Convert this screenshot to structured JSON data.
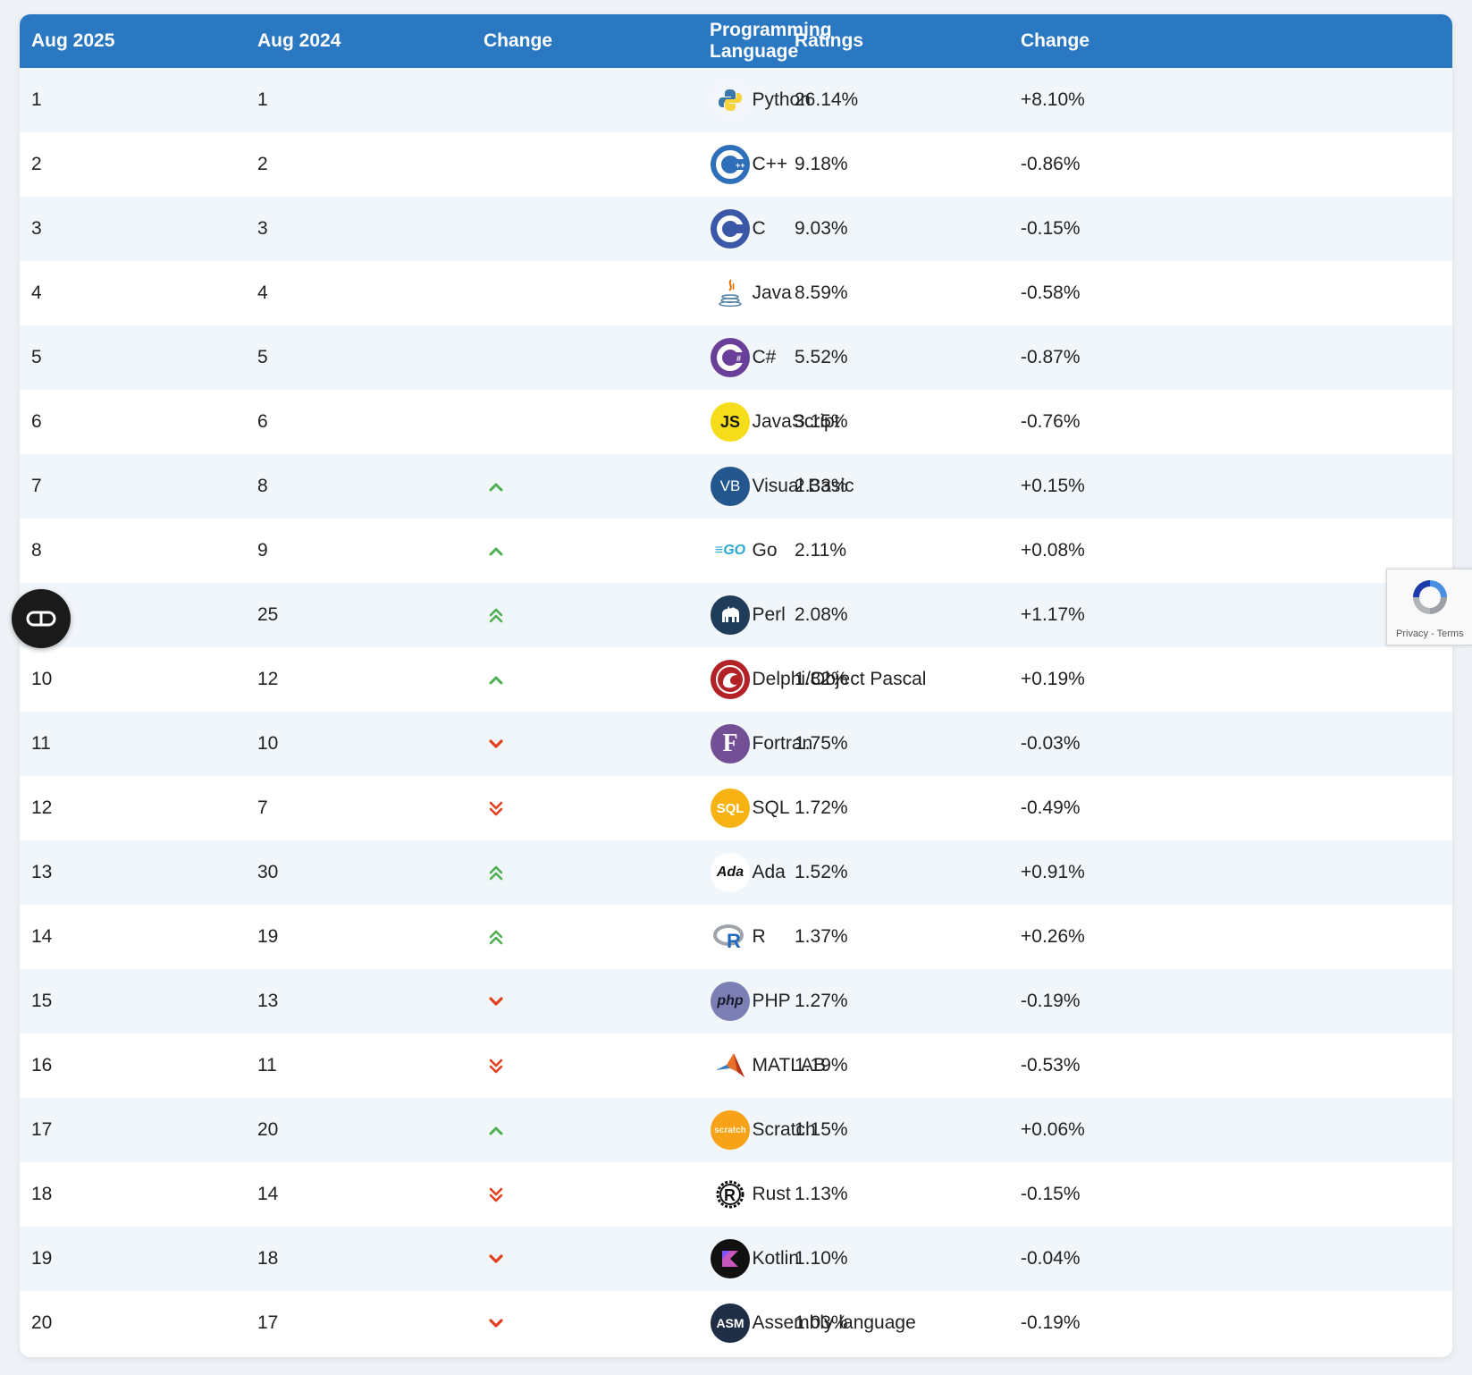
{
  "header": {
    "col1": "Aug 2025",
    "col2": "Aug 2024",
    "col3": "Change",
    "col4": "Programming Language",
    "col5": "Ratings",
    "col6": "Change"
  },
  "colors": {
    "header_bg": "#2a77c2",
    "up": "#4caf50",
    "down": "#e0401f"
  },
  "rows": [
    {
      "rank_2025": "1",
      "rank_2024": "1",
      "trend": "none",
      "icon": "python-logo-icon",
      "language": "Python",
      "rating": "26.14%",
      "change": "+8.10%"
    },
    {
      "rank_2025": "2",
      "rank_2024": "2",
      "trend": "none",
      "icon": "cplusplus-logo-icon",
      "language": "C++",
      "rating": "9.18%",
      "change": "-0.86%"
    },
    {
      "rank_2025": "3",
      "rank_2024": "3",
      "trend": "none",
      "icon": "c-logo-icon",
      "language": "C",
      "rating": "9.03%",
      "change": "-0.15%"
    },
    {
      "rank_2025": "4",
      "rank_2024": "4",
      "trend": "none",
      "icon": "java-logo-icon",
      "language": "Java",
      "rating": "8.59%",
      "change": "-0.58%"
    },
    {
      "rank_2025": "5",
      "rank_2024": "5",
      "trend": "none",
      "icon": "csharp-logo-icon",
      "language": "C#",
      "rating": "5.52%",
      "change": "-0.87%"
    },
    {
      "rank_2025": "6",
      "rank_2024": "6",
      "trend": "none",
      "icon": "javascript-logo-icon",
      "language": "JavaScript",
      "rating": "3.15%",
      "change": "-0.76%"
    },
    {
      "rank_2025": "7",
      "rank_2024": "8",
      "trend": "up",
      "icon": "visualbasic-logo-icon",
      "language": "Visual Basic",
      "rating": "2.33%",
      "change": "+0.15%"
    },
    {
      "rank_2025": "8",
      "rank_2024": "9",
      "trend": "up",
      "icon": "go-logo-icon",
      "language": "Go",
      "rating": "2.11%",
      "change": "+0.08%"
    },
    {
      "rank_2025": "",
      "rank_2024": "25",
      "trend": "double-up",
      "icon": "perl-logo-icon",
      "language": "Perl",
      "rating": "2.08%",
      "change": "+1.17%"
    },
    {
      "rank_2025": "10",
      "rank_2024": "12",
      "trend": "up",
      "icon": "delphi-logo-icon",
      "language": "Delphi/Object Pascal",
      "rating": "1.82%",
      "change": "+0.19%"
    },
    {
      "rank_2025": "11",
      "rank_2024": "10",
      "trend": "down",
      "icon": "fortran-logo-icon",
      "language": "Fortran",
      "rating": "1.75%",
      "change": "-0.03%"
    },
    {
      "rank_2025": "12",
      "rank_2024": "7",
      "trend": "double-down",
      "icon": "sql-logo-icon",
      "language": "SQL",
      "rating": "1.72%",
      "change": "-0.49%"
    },
    {
      "rank_2025": "13",
      "rank_2024": "30",
      "trend": "double-up",
      "icon": "ada-logo-icon",
      "language": "Ada",
      "rating": "1.52%",
      "change": "+0.91%"
    },
    {
      "rank_2025": "14",
      "rank_2024": "19",
      "trend": "double-up",
      "icon": "r-logo-icon",
      "language": "R",
      "rating": "1.37%",
      "change": "+0.26%"
    },
    {
      "rank_2025": "15",
      "rank_2024": "13",
      "trend": "down",
      "icon": "php-logo-icon",
      "language": "PHP",
      "rating": "1.27%",
      "change": "-0.19%"
    },
    {
      "rank_2025": "16",
      "rank_2024": "11",
      "trend": "double-down",
      "icon": "matlab-logo-icon",
      "language": "MATLAB",
      "rating": "1.19%",
      "change": "-0.53%"
    },
    {
      "rank_2025": "17",
      "rank_2024": "20",
      "trend": "up",
      "icon": "scratch-logo-icon",
      "language": "Scratch",
      "rating": "1.15%",
      "change": "+0.06%"
    },
    {
      "rank_2025": "18",
      "rank_2024": "14",
      "trend": "double-down",
      "icon": "rust-logo-icon",
      "language": "Rust",
      "rating": "1.13%",
      "change": "-0.15%"
    },
    {
      "rank_2025": "19",
      "rank_2024": "18",
      "trend": "down",
      "icon": "kotlin-logo-icon",
      "language": "Kotlin",
      "rating": "1.10%",
      "change": "-0.04%"
    },
    {
      "rank_2025": "20",
      "rank_2024": "17",
      "trend": "down",
      "icon": "assembly-logo-icon",
      "language": "Assembly language",
      "rating": "1.03%",
      "change": "-0.19%"
    }
  ],
  "recaptcha": {
    "text": "Privacy - Terms"
  }
}
